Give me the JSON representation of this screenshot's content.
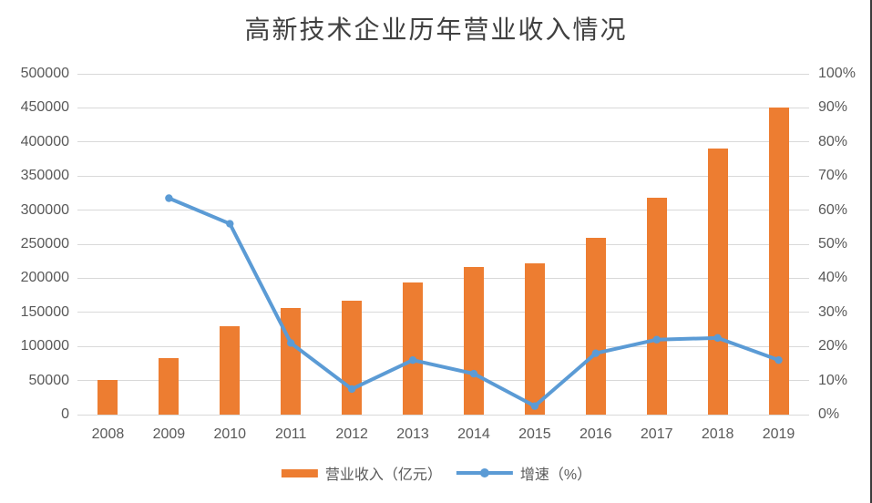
{
  "title": "高新技术企业历年营业收入情况",
  "legend": {
    "items": [
      {
        "label": "营业收入（亿元）",
        "series": "revenue-bar"
      },
      {
        "label": "增速（%）",
        "series": "growth-line"
      }
    ]
  },
  "colors": {
    "bar": "#ED7D31",
    "line": "#5B9BD5",
    "grid": "#D9D9D9",
    "axis_text": "#595959",
    "title_text": "#404040",
    "right_border": "#3B3B3B",
    "background": "#FFFFFF"
  },
  "chart_data": {
    "type": "bar",
    "subtype": "bar-line-combo",
    "title": "高新技术企业历年营业收入情况",
    "categories": [
      "2008",
      "2009",
      "2010",
      "2011",
      "2012",
      "2013",
      "2014",
      "2015",
      "2016",
      "2017",
      "2018",
      "2019"
    ],
    "series": [
      {
        "name": "营业收入（亿元）",
        "type": "bar",
        "axis": "left",
        "values": [
          51000,
          83000,
          130000,
          156000,
          166500,
          194000,
          217000,
          222000,
          260000,
          318000,
          390000,
          450000
        ]
      },
      {
        "name": "增速（%）",
        "type": "line",
        "axis": "right",
        "values": [
          null,
          63.5,
          56,
          21,
          7.5,
          16,
          12,
          2.5,
          18,
          22,
          22.5,
          16
        ]
      }
    ],
    "left_axis": {
      "min": 0,
      "max": 500000,
      "step": 50000,
      "ticks": [
        "0",
        "50000",
        "100000",
        "150000",
        "200000",
        "250000",
        "300000",
        "350000",
        "400000",
        "450000",
        "500000"
      ]
    },
    "right_axis": {
      "min": 0,
      "max": 100,
      "step": 10,
      "ticks": [
        "0%",
        "10%",
        "20%",
        "30%",
        "40%",
        "50%",
        "60%",
        "70%",
        "80%",
        "90%",
        "100%"
      ]
    },
    "grid": true,
    "legend_position": "bottom"
  }
}
